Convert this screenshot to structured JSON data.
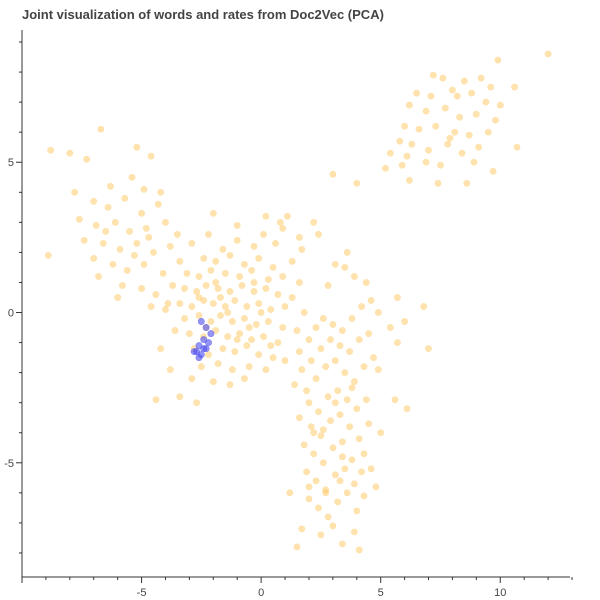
{
  "chart_data": {
    "type": "scatter",
    "title": "Joint visualization of words and rates from Doc2Vec (PCA)",
    "xlabel": "",
    "ylabel": "",
    "xlim": [
      -10,
      13
    ],
    "ylim": [
      -8.8,
      9.4
    ],
    "x_ticks": [
      -5,
      0,
      5,
      10
    ],
    "y_ticks": [
      -5,
      0,
      5
    ],
    "grid": false,
    "legend": "none",
    "colors": {
      "words": "#ffc04d",
      "rates": "#4d4df0"
    },
    "series": [
      {
        "points": [
          [
            12.0,
            8.6
          ],
          [
            9.9,
            8.4
          ],
          [
            7.2,
            7.9
          ],
          [
            7.6,
            7.8
          ],
          [
            8.5,
            7.7
          ],
          [
            9.2,
            7.8
          ],
          [
            9.6,
            7.5
          ],
          [
            10.6,
            7.5
          ],
          [
            6.5,
            7.3
          ],
          [
            7.1,
            7.2
          ],
          [
            8.0,
            7.4
          ],
          [
            8.8,
            7.3
          ],
          [
            9.4,
            7.0
          ],
          [
            10.0,
            6.9
          ],
          [
            6.2,
            6.9
          ],
          [
            6.9,
            6.7
          ],
          [
            7.7,
            6.8
          ],
          [
            8.3,
            6.5
          ],
          [
            9.0,
            6.6
          ],
          [
            9.8,
            6.4
          ],
          [
            6.0,
            6.2
          ],
          [
            6.6,
            6.1
          ],
          [
            7.3,
            6.2
          ],
          [
            8.1,
            6.0
          ],
          [
            8.7,
            5.9
          ],
          [
            9.5,
            6.0
          ],
          [
            5.8,
            5.7
          ],
          [
            6.3,
            5.6
          ],
          [
            7.0,
            5.4
          ],
          [
            7.8,
            5.6
          ],
          [
            8.4,
            5.3
          ],
          [
            9.1,
            5.5
          ],
          [
            10.7,
            5.5
          ],
          [
            5.4,
            5.3
          ],
          [
            6.1,
            5.2
          ],
          [
            6.9,
            5.0
          ],
          [
            7.5,
            4.9
          ],
          [
            8.9,
            5.0
          ],
          [
            5.2,
            4.8
          ],
          [
            6.2,
            4.4
          ],
          [
            7.4,
            4.3
          ],
          [
            8.6,
            4.3
          ],
          [
            9.7,
            4.7
          ],
          [
            5.9,
            4.9
          ],
          [
            7.9,
            5.8
          ],
          [
            8.2,
            7.2
          ],
          [
            -8.8,
            5.4
          ],
          [
            -8.0,
            5.3
          ],
          [
            -7.3,
            5.1
          ],
          [
            -6.7,
            6.1
          ],
          [
            -5.2,
            5.5
          ],
          [
            -4.6,
            5.2
          ],
          [
            -7.8,
            4.0
          ],
          [
            -6.3,
            4.2
          ],
          [
            -5.4,
            4.5
          ],
          [
            -4.9,
            4.1
          ],
          [
            -4.2,
            4.0
          ],
          [
            -7.0,
            3.7
          ],
          [
            -6.4,
            3.5
          ],
          [
            -5.7,
            3.8
          ],
          [
            -5.0,
            3.3
          ],
          [
            -4.3,
            3.6
          ],
          [
            -7.6,
            3.1
          ],
          [
            -6.9,
            2.9
          ],
          [
            -6.1,
            3.0
          ],
          [
            -5.5,
            2.7
          ],
          [
            -4.8,
            2.8
          ],
          [
            -4.0,
            3.0
          ],
          [
            -3.5,
            2.6
          ],
          [
            -7.4,
            2.4
          ],
          [
            -6.6,
            2.3
          ],
          [
            -5.9,
            2.1
          ],
          [
            -5.2,
            2.3
          ],
          [
            -4.5,
            2.0
          ],
          [
            -3.8,
            2.2
          ],
          [
            -7.0,
            1.8
          ],
          [
            -6.2,
            1.6
          ],
          [
            -5.6,
            1.4
          ],
          [
            -4.9,
            1.6
          ],
          [
            -4.1,
            1.3
          ],
          [
            -3.4,
            1.7
          ],
          [
            -6.8,
            1.2
          ],
          [
            -5.8,
            0.9
          ],
          [
            -5.0,
            0.8
          ],
          [
            -4.4,
            0.6
          ],
          [
            -3.7,
            0.9
          ],
          [
            -8.9,
            1.9
          ],
          [
            -6.0,
            0.5
          ],
          [
            -4.6,
            0.2
          ],
          [
            -3.9,
            0.3
          ],
          [
            -5.3,
            1.9
          ],
          [
            -4.7,
            2.5
          ],
          [
            -6.5,
            2.7
          ],
          [
            -2.9,
            2.3
          ],
          [
            -2.2,
            2.6
          ],
          [
            -1.6,
            2.1
          ],
          [
            -1.0,
            2.4
          ],
          [
            -0.3,
            2.2
          ],
          [
            0.6,
            2.3
          ],
          [
            1.1,
            3.2
          ],
          [
            0.2,
            3.2
          ],
          [
            -2.4,
            1.8
          ],
          [
            -1.9,
            1.7
          ],
          [
            -1.3,
            1.9
          ],
          [
            -0.7,
            1.6
          ],
          [
            -0.1,
            1.8
          ],
          [
            0.5,
            1.5
          ],
          [
            1.3,
            1.7
          ],
          [
            1.7,
            2.1
          ],
          [
            -3.1,
            1.3
          ],
          [
            -2.6,
            1.2
          ],
          [
            -2.1,
            1.4
          ],
          [
            -1.5,
            1.3
          ],
          [
            -0.9,
            1.2
          ],
          [
            -0.4,
            1.4
          ],
          [
            0.3,
            1.1
          ],
          [
            0.9,
            1.2
          ],
          [
            1.6,
            1.0
          ],
          [
            -3.2,
            0.8
          ],
          [
            -2.7,
            0.7
          ],
          [
            -2.3,
            0.9
          ],
          [
            -1.8,
            0.8
          ],
          [
            -1.3,
            0.7
          ],
          [
            -0.8,
            0.9
          ],
          [
            -0.3,
            0.7
          ],
          [
            0.2,
            0.8
          ],
          [
            0.7,
            0.6
          ],
          [
            1.3,
            0.5
          ],
          [
            -3.4,
            0.3
          ],
          [
            -2.9,
            0.2
          ],
          [
            -2.4,
            0.4
          ],
          [
            -2.0,
            0.3
          ],
          [
            -1.5,
            0.2
          ],
          [
            -1.1,
            0.4
          ],
          [
            -0.6,
            0.2
          ],
          [
            -0.1,
            0.3
          ],
          [
            0.4,
            0.1
          ],
          [
            1.0,
            0.2
          ],
          [
            1.8,
            0.0
          ],
          [
            -3.2,
            -0.2
          ],
          [
            -2.6,
            -0.1
          ],
          [
            -2.1,
            -0.3
          ],
          [
            -1.7,
            -0.1
          ],
          [
            -1.2,
            -0.3
          ],
          [
            -0.7,
            -0.2
          ],
          [
            -0.2,
            -0.4
          ],
          [
            0.3,
            -0.3
          ],
          [
            0.9,
            -0.5
          ],
          [
            1.5,
            -0.6
          ],
          [
            -3.0,
            -0.7
          ],
          [
            -2.4,
            -0.8
          ],
          [
            -1.9,
            -0.6
          ],
          [
            -1.4,
            -0.8
          ],
          [
            -0.9,
            -0.7
          ],
          [
            -0.4,
            -0.9
          ],
          [
            0.1,
            -0.8
          ],
          [
            0.7,
            -1.0
          ],
          [
            -2.8,
            -1.2
          ],
          [
            -2.2,
            -1.4
          ],
          [
            -1.6,
            -1.2
          ],
          [
            -1.1,
            -1.3
          ],
          [
            -0.6,
            -1.1
          ],
          [
            -0.1,
            -1.4
          ],
          [
            0.5,
            -1.5
          ],
          [
            -2.5,
            -1.8
          ],
          [
            -1.8,
            -1.7
          ],
          [
            -1.2,
            -1.9
          ],
          [
            -0.5,
            -1.8
          ],
          [
            0.2,
            -1.9
          ],
          [
            -2.9,
            -2.2
          ],
          [
            -2.0,
            -2.3
          ],
          [
            -1.3,
            -2.4
          ],
          [
            -0.7,
            -2.2
          ],
          [
            -3.4,
            -2.8
          ],
          [
            -2.7,
            -3.0
          ],
          [
            -4.4,
            -2.9
          ],
          [
            -3.8,
            -1.9
          ],
          [
            -4.2,
            -1.2
          ],
          [
            -3.6,
            -0.6
          ],
          [
            -4.0,
            0.1
          ],
          [
            -1.0,
            2.9
          ],
          [
            -2.0,
            3.3
          ],
          [
            -1.4,
            0.0
          ],
          [
            -0.5,
            -0.5
          ],
          [
            -2.3,
            -0.5
          ],
          [
            -1.7,
            0.5
          ],
          [
            0.0,
            0.0
          ],
          [
            -1.0,
            -0.9
          ],
          [
            0.4,
            -1.1
          ],
          [
            -2.6,
            0.5
          ],
          [
            -1.9,
            1.0
          ],
          [
            -0.3,
            1.0
          ],
          [
            0.1,
            2.6
          ],
          [
            0.9,
            2.8
          ],
          [
            1.0,
            -1.6
          ],
          [
            1.6,
            -1.3
          ],
          [
            2.0,
            -0.9
          ],
          [
            2.3,
            -0.5
          ],
          [
            2.6,
            -0.2
          ],
          [
            3.0,
            -0.4
          ],
          [
            3.4,
            -0.6
          ],
          [
            3.8,
            -0.2
          ],
          [
            4.2,
            0.2
          ],
          [
            4.6,
            0.4
          ],
          [
            1.7,
            -1.9
          ],
          [
            2.1,
            -1.6
          ],
          [
            2.5,
            -1.2
          ],
          [
            2.9,
            -0.9
          ],
          [
            3.3,
            -1.1
          ],
          [
            3.7,
            -1.3
          ],
          [
            4.1,
            -0.9
          ],
          [
            4.5,
            -0.7
          ],
          [
            1.4,
            -2.4
          ],
          [
            1.9,
            -2.6
          ],
          [
            2.3,
            -2.2
          ],
          [
            2.7,
            -1.8
          ],
          [
            3.1,
            -1.6
          ],
          [
            3.5,
            -2.0
          ],
          [
            3.9,
            -2.3
          ],
          [
            4.3,
            -1.8
          ],
          [
            4.7,
            -1.5
          ],
          [
            2.0,
            -3.0
          ],
          [
            2.4,
            -3.3
          ],
          [
            2.8,
            -2.8
          ],
          [
            3.2,
            -2.6
          ],
          [
            3.6,
            -2.9
          ],
          [
            4.0,
            -3.2
          ],
          [
            4.4,
            -2.9
          ],
          [
            1.6,
            -3.5
          ],
          [
            2.1,
            -3.8
          ],
          [
            2.5,
            -4.1
          ],
          [
            2.9,
            -3.6
          ],
          [
            3.3,
            -3.4
          ],
          [
            3.7,
            -3.8
          ],
          [
            4.1,
            -4.2
          ],
          [
            1.8,
            -4.4
          ],
          [
            2.2,
            -4.7
          ],
          [
            2.6,
            -5.0
          ],
          [
            3.0,
            -4.5
          ],
          [
            3.4,
            -4.3
          ],
          [
            3.8,
            -4.9
          ],
          [
            4.2,
            -5.3
          ],
          [
            1.9,
            -5.3
          ],
          [
            2.3,
            -5.6
          ],
          [
            2.7,
            -5.9
          ],
          [
            3.1,
            -5.4
          ],
          [
            3.5,
            -5.2
          ],
          [
            3.9,
            -5.7
          ],
          [
            4.3,
            -6.1
          ],
          [
            2.0,
            -6.2
          ],
          [
            2.4,
            -6.5
          ],
          [
            2.8,
            -6.8
          ],
          [
            3.2,
            -6.3
          ],
          [
            3.6,
            -6.0
          ],
          [
            4.0,
            -6.6
          ],
          [
            1.7,
            -7.2
          ],
          [
            2.5,
            -7.4
          ],
          [
            3.0,
            -7.1
          ],
          [
            3.4,
            -7.7
          ],
          [
            3.9,
            -7.3
          ],
          [
            1.5,
            -7.8
          ],
          [
            4.1,
            -7.9
          ],
          [
            1.2,
            -6.0
          ],
          [
            4.8,
            -5.8
          ],
          [
            5.6,
            -2.9
          ],
          [
            6.1,
            -3.2
          ],
          [
            7.0,
            -1.2
          ],
          [
            6.8,
            0.2
          ],
          [
            6.0,
            -0.3
          ],
          [
            5.7,
            -1.0
          ],
          [
            5.4,
            -0.5
          ],
          [
            4.9,
            -1.9
          ],
          [
            4.5,
            -3.7
          ],
          [
            3.6,
            2.0
          ],
          [
            3.1,
            1.6
          ],
          [
            2.4,
            2.6
          ],
          [
            2.2,
            3.0
          ],
          [
            3.0,
            4.6
          ],
          [
            4.0,
            4.3
          ],
          [
            3.9,
            1.2
          ],
          [
            2.8,
            0.9
          ],
          [
            3.5,
            1.5
          ],
          [
            4.4,
            1.0
          ],
          [
            4.9,
            0.0
          ],
          [
            5.7,
            0.5
          ],
          [
            4.3,
            -4.7
          ],
          [
            4.6,
            -5.2
          ],
          [
            3.1,
            -3.0
          ],
          [
            2.6,
            -3.9
          ],
          [
            3.4,
            -4.8
          ],
          [
            2.7,
            -6.0
          ],
          [
            3.3,
            -5.6
          ],
          [
            2.0,
            -5.8
          ],
          [
            2.2,
            -4.0
          ],
          [
            3.8,
            -2.5
          ],
          [
            1.6,
            2.5
          ],
          [
            0.8,
            3.0
          ],
          [
            5.0,
            -4.0
          ]
        ]
      },
      {
        "points": [
          [
            -2.5,
            -0.3
          ],
          [
            -2.3,
            -0.5
          ],
          [
            -2.1,
            -0.7
          ],
          [
            -2.4,
            -0.9
          ],
          [
            -2.2,
            -1.0
          ],
          [
            -2.6,
            -1.1
          ],
          [
            -2.4,
            -1.2
          ],
          [
            -2.7,
            -1.3
          ],
          [
            -2.5,
            -1.4
          ],
          [
            -2.8,
            -1.3
          ],
          [
            -2.6,
            -1.5
          ],
          [
            -2.3,
            -1.2
          ]
        ]
      }
    ]
  }
}
